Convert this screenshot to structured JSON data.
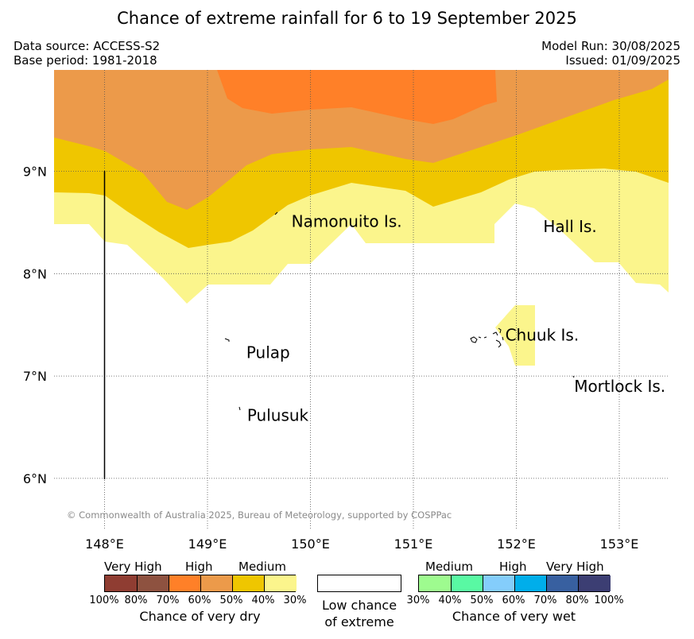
{
  "title": "Chance of extreme rainfall for 6 to 19 September 2025",
  "data_source": "Data source: ACCESS-S2",
  "base_period": "Base period: 1981-2018",
  "model_run": "Model Run: 30/08/2025",
  "issued": "Issued: 01/09/2025",
  "map": {
    "lon_ticks": [
      "148°E",
      "149°E",
      "150°E",
      "151°E",
      "152°E",
      "153°E"
    ],
    "lat_ticks": [
      "9°N",
      "8°N",
      "7°N",
      "6°N"
    ],
    "lon_range": [
      147.5,
      153.5
    ],
    "lat_range": [
      5.5,
      9.98
    ],
    "grid": true,
    "copyright": "© Commonwealth of Australia 2025, Bureau of Meteorology, supported by COSPPac",
    "places": [
      {
        "label": "Namonuito Is.",
        "lon": 149.7,
        "lat": 8.55
      },
      {
        "label": "Hall Is.",
        "lon": 152.3,
        "lat": 8.5
      },
      {
        "label": "Pulap",
        "lon": 149.3,
        "lat": 7.3
      },
      {
        "label": "Chuuk Is.",
        "lon": 151.8,
        "lat": 7.4
      },
      {
        "label": "Pulusuk",
        "lon": 149.3,
        "lat": 6.7
      },
      {
        "label": "Mortlock Is.",
        "lon": 152.6,
        "lat": 7.0
      }
    ],
    "colors": {
      "very_high_dry": "#ff8028",
      "high_dry": "#ec9a4a",
      "medium_dry_40": "#efc600",
      "medium_dry_30": "#fbf58c"
    }
  },
  "legend": {
    "dry": {
      "categories": [
        "Very High",
        "High",
        "Medium"
      ],
      "ticks": [
        "100%",
        "80%",
        "70%",
        "60%",
        "50%",
        "40%",
        "30%"
      ],
      "colors": [
        "#8f3d32",
        "#8e5240",
        "#ff8028",
        "#ec9a4a",
        "#efc600",
        "#fbf58c"
      ],
      "caption": "Chance of very dry"
    },
    "neutral": {
      "line1": "Low chance",
      "line2": "of extreme"
    },
    "wet": {
      "categories": [
        "Medium",
        "High",
        "Very High"
      ],
      "ticks": [
        "30%",
        "40%",
        "50%",
        "60%",
        "70%",
        "80%",
        "100%"
      ],
      "colors": [
        "#9efb8f",
        "#59f9a3",
        "#84cdfb",
        "#00aeea",
        "#3860a0",
        "#3c3e73"
      ],
      "caption": "Chance of very wet"
    }
  }
}
